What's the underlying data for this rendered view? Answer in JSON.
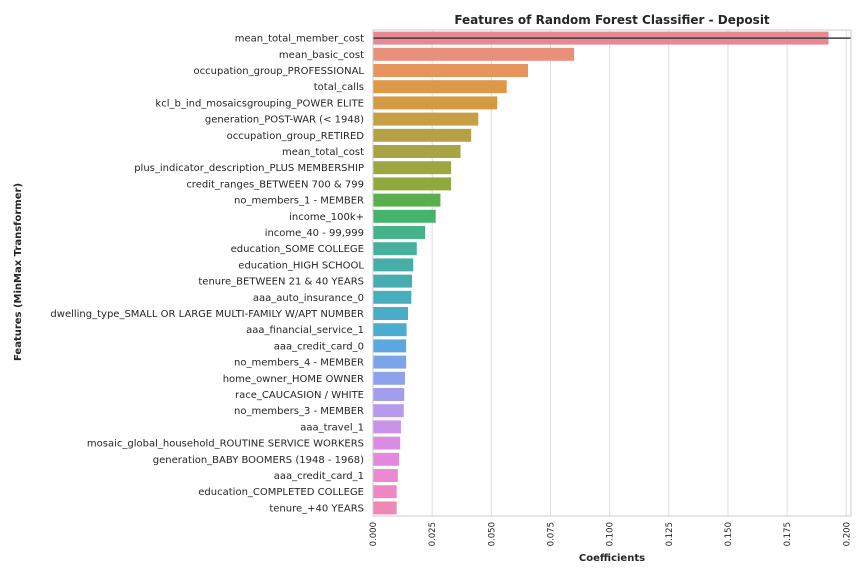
{
  "chart_data": {
    "type": "bar",
    "orientation": "horizontal",
    "title": "Features of Random Forest Classifier - Deposit",
    "xlabel": "Coefficients",
    "ylabel": "Features (MinMax Transformer)",
    "xlim": [
      0,
      0.202
    ],
    "xticks": [
      "0.000",
      "0.025",
      "0.050",
      "0.075",
      "0.100",
      "0.125",
      "0.150",
      "0.175",
      "0.200"
    ],
    "grid": true,
    "categories": [
      "mean_total_member_cost",
      "mean_basic_cost",
      "occupation_group_PROFESSIONAL",
      "total_calls",
      "kcl_b_ind_mosaicsgrouping_POWER ELITE",
      "generation_POST-WAR (< 1948)",
      "occupation_group_RETIRED",
      "mean_total_cost",
      "plus_indicator_description_PLUS MEMBERSHIP",
      "credit_ranges_BETWEEN 700 & 799",
      "no_members_1 - MEMBER",
      "income_100k+",
      "income_40 - 99,999",
      "education_SOME COLLEGE",
      "education_HIGH SCHOOL",
      "tenure_BETWEEN 21 & 40 YEARS",
      "aaa_auto_insurance_0",
      "dwelling_type_SMALL OR LARGE MULTI-FAMILY W/APT NUMBER",
      "aaa_financial_service_1",
      "aaa_credit_card_0",
      "no_members_4 - MEMBER",
      "home_owner_HOME OWNER",
      "race_CAUCASION / WHITE",
      "no_members_3 - MEMBER",
      "aaa_travel_1",
      "mosaic_global_household_ROUTINE SERVICE WORKERS",
      "generation_BABY BOOMERS (1948 - 1968)",
      "aaa_credit_card_1",
      "education_COMPLETED COLLEGE",
      "tenure_+40 YEARS"
    ],
    "values": [
      0.1925,
      0.085,
      0.0655,
      0.0565,
      0.0525,
      0.0445,
      0.0415,
      0.037,
      0.033,
      0.033,
      0.0285,
      0.0265,
      0.022,
      0.0185,
      0.017,
      0.0165,
      0.0162,
      0.0148,
      0.0142,
      0.014,
      0.014,
      0.0135,
      0.0132,
      0.013,
      0.0118,
      0.0115,
      0.011,
      0.0105,
      0.01,
      0.01
    ],
    "error_bar": {
      "category": "mean_total_member_cost",
      "low": 0.0,
      "high": 0.202
    },
    "colors": [
      "#e88992",
      "#e8907a",
      "#e7935e",
      "#dd9848",
      "#d29a43",
      "#c69e44",
      "#b6a046",
      "#a8a344",
      "#9da73f",
      "#8fa93d",
      "#5aae4d",
      "#45b36d",
      "#46b28a",
      "#47b09d",
      "#47aea7",
      "#48adb1",
      "#49aebb",
      "#4aacc6",
      "#4babd1",
      "#5ba8e0",
      "#7aa4e8",
      "#8ea2ec",
      "#a39ded",
      "#b59aee",
      "#c993e9",
      "#d98ee4",
      "#e48adc",
      "#eb8ad2",
      "#ee89c5",
      "#ec8ab5"
    ]
  }
}
